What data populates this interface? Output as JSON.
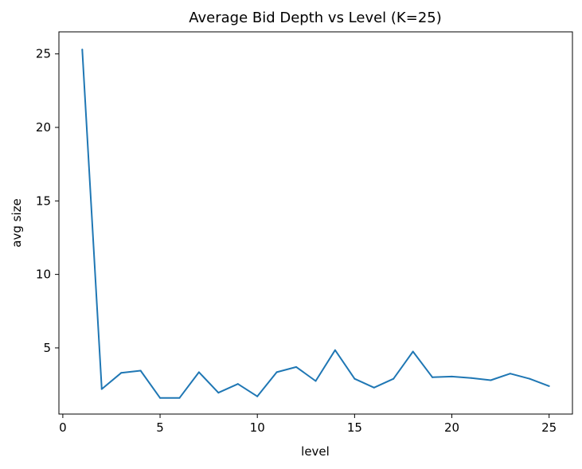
{
  "chart_data": {
    "type": "line",
    "title": "Average Bid Depth vs Level (K=25)",
    "xlabel": "level",
    "ylabel": "avg size",
    "xlim": [
      -0.2,
      26.2
    ],
    "ylim": [
      0.5,
      26.5
    ],
    "xticks": [
      0,
      5,
      10,
      15,
      20,
      25
    ],
    "yticks": [
      5,
      10,
      15,
      20,
      25
    ],
    "grid": false,
    "series": [
      {
        "color": "#1f77b4",
        "x": [
          1,
          2,
          3,
          4,
          5,
          6,
          7,
          8,
          9,
          10,
          11,
          12,
          13,
          14,
          15,
          16,
          17,
          18,
          19,
          20,
          21,
          22,
          23,
          24,
          25
        ],
        "y": [
          25.3,
          2.2,
          3.3,
          3.45,
          1.6,
          1.6,
          3.35,
          1.95,
          2.55,
          1.7,
          3.35,
          3.7,
          2.75,
          4.85,
          2.9,
          2.3,
          2.9,
          4.75,
          3.0,
          3.05,
          2.95,
          2.8,
          3.25,
          2.9,
          2.4
        ]
      }
    ]
  }
}
